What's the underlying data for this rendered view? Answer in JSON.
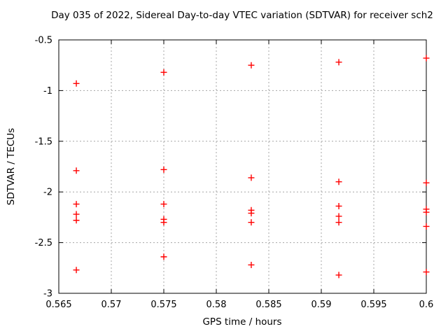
{
  "figure": {
    "title": "Day 035 of 2022, Sidereal Day-to-day VTEC variation (SDTVAR) for receiver sch2"
  },
  "colors": {
    "background": "#ffffff",
    "frame": "#000000",
    "grid": "#a6a6a6",
    "text": "#000000",
    "marker": "#ff0000"
  },
  "chart_data": {
    "type": "scatter",
    "title": "Day 035 of 2022, Sidereal Day-to-day VTEC variation (SDTVAR) for receiver sch2",
    "xlabel": "GPS time / hours",
    "ylabel": "SDTVAR / TECUs",
    "xlim": [
      0.565,
      0.6
    ],
    "ylim": [
      -3,
      -0.5
    ],
    "x_ticks": [
      0.565,
      0.57,
      0.575,
      0.58,
      0.585,
      0.59,
      0.595,
      0.6
    ],
    "x_tick_labels": [
      "0.565",
      "0.57",
      "0.575",
      "0.58",
      "0.585",
      "0.59",
      "0.595",
      "0.6"
    ],
    "y_ticks": [
      -0.5,
      -1,
      -1.5,
      -2,
      -2.5,
      -3
    ],
    "y_tick_labels": [
      "-0.5",
      "-1",
      "-1.5",
      "-2",
      "-2.5",
      "-3"
    ],
    "grid": true,
    "grid_style": "dotted",
    "legend": false,
    "marker": "plus",
    "marker_color": "#ff0000",
    "marker_size": 9,
    "series": [
      {
        "name": "SDTVAR",
        "points": [
          [
            0.56667,
            -0.93
          ],
          [
            0.56667,
            -1.79
          ],
          [
            0.56667,
            -2.12
          ],
          [
            0.56667,
            -2.22
          ],
          [
            0.56667,
            -2.28
          ],
          [
            0.56667,
            -2.77
          ],
          [
            0.575,
            -0.82
          ],
          [
            0.575,
            -1.78
          ],
          [
            0.575,
            -2.12
          ],
          [
            0.575,
            -2.27
          ],
          [
            0.575,
            -2.3
          ],
          [
            0.575,
            -2.64
          ],
          [
            0.58333,
            -0.75
          ],
          [
            0.58333,
            -1.86
          ],
          [
            0.58333,
            -2.18
          ],
          [
            0.58333,
            -2.21
          ],
          [
            0.58333,
            -2.3
          ],
          [
            0.58333,
            -2.72
          ],
          [
            0.59167,
            -0.72
          ],
          [
            0.59167,
            -1.9
          ],
          [
            0.59167,
            -2.14
          ],
          [
            0.59167,
            -2.24
          ],
          [
            0.59167,
            -2.3
          ],
          [
            0.59167,
            -2.82
          ],
          [
            0.6,
            -0.68
          ],
          [
            0.6,
            -1.91
          ],
          [
            0.6,
            -2.17
          ],
          [
            0.6,
            -2.2
          ],
          [
            0.6,
            -2.34
          ],
          [
            0.6,
            -2.79
          ]
        ]
      }
    ]
  }
}
